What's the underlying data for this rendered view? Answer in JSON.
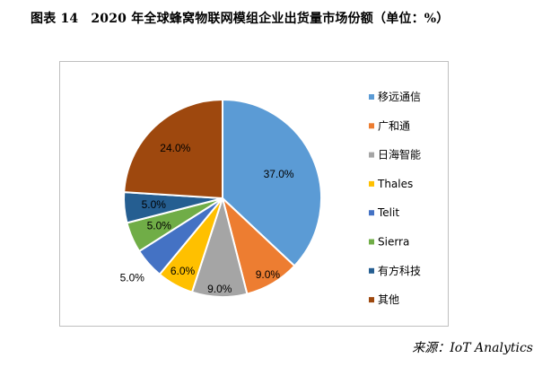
{
  "caption": {
    "label": "图表 14",
    "title": "2020 年全球蜂窝物联网模组企业出货量市场份额（单位：%）"
  },
  "source": "来源：IoT  Analytics",
  "chart_data": {
    "type": "pie",
    "categories": [
      "移远通信",
      "广和通",
      "日海智能",
      "Thales",
      "Telit",
      "Sierra",
      "有方科技",
      "其他"
    ],
    "values": [
      37.0,
      9.0,
      9.0,
      6.0,
      5.0,
      5.0,
      5.0,
      24.0
    ],
    "value_labels": [
      "37.0%",
      "9.0%",
      "9.0%",
      "6.0%",
      "5.0%",
      "5.0%",
      "5.0%",
      "24.0%"
    ],
    "colors": [
      "#5B9BD5",
      "#ED7D31",
      "#A5A5A5",
      "#FFC000",
      "#4472C4",
      "#70AD47",
      "#255E91",
      "#9E480E"
    ],
    "start_angle": "12 o'clock",
    "direction": "clockwise",
    "legend_position": "right"
  }
}
